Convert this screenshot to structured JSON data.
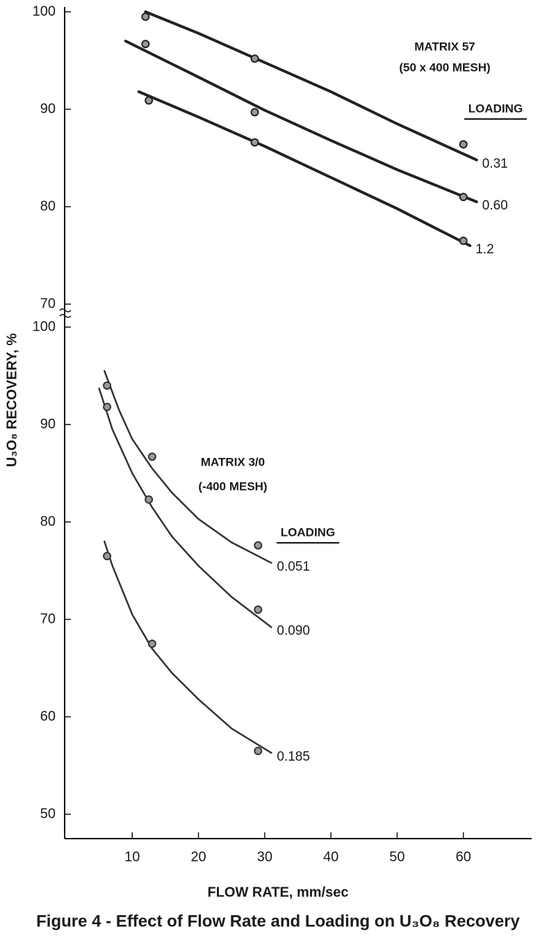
{
  "chart_data": {
    "type": "scatter",
    "title": "Figure 4 - Effect of Flow Rate and Loading on U₃O₈ Recovery",
    "xlabel": "FLOW RATE, mm/sec",
    "ylabel": "U₃O₈ RECOVERY, %",
    "xlim": [
      0,
      70
    ],
    "xticks": [
      10,
      20,
      30,
      40,
      50,
      60
    ],
    "panels": [
      {
        "annotations": [
          "MATRIX 57",
          "(50 x 400 MESH)",
          "LOADING"
        ],
        "ylim": [
          70,
          100
        ],
        "yticks": [
          70,
          80,
          90,
          100
        ],
        "series": [
          {
            "name": "0.31",
            "color": "#222222",
            "x": [
              12,
              28.5,
              60
            ],
            "values": [
              99.5,
              95.2,
              86.4
            ],
            "fit_x": [
              12,
              20,
              30,
              40,
              50,
              62
            ],
            "fit_values": [
              100,
              97.8,
              94.8,
              91.8,
              88.5,
              84.8
            ]
          },
          {
            "name": "0.60",
            "color": "#222222",
            "x": [
              12,
              28.5,
              60
            ],
            "values": [
              96.7,
              89.7,
              81
            ],
            "fit_x": [
              9,
              20,
              30,
              40,
              50,
              62
            ],
            "fit_values": [
              97,
              93.3,
              89.9,
              86.8,
              83.8,
              80.5
            ]
          },
          {
            "name": "1.2",
            "color": "#222222",
            "x": [
              12.5,
              28.5,
              60
            ],
            "values": [
              90.9,
              86.6,
              76.5
            ],
            "fit_x": [
              11,
              20,
              30,
              40,
              50,
              61
            ],
            "fit_values": [
              91.8,
              89.2,
              86.2,
              83,
              79.8,
              76
            ]
          }
        ]
      },
      {
        "annotations": [
          "MATRIX 3/0",
          "(-400 MESH)",
          "LOADING"
        ],
        "ylim": [
          47.5,
          100
        ],
        "yticks": [
          50,
          60,
          70,
          80,
          90,
          100
        ],
        "series": [
          {
            "name": "0.051",
            "color": "#333333",
            "x": [
              6.2,
              13,
              29
            ],
            "values": [
              94,
              86.7,
              77.6
            ],
            "fit_x": [
              5.8,
              8,
              10,
              13,
              16,
              20,
              25,
              31
            ],
            "fit_values": [
              95.5,
              91.5,
              88.5,
              85.5,
              83,
              80.3,
              77.9,
              75.8
            ]
          },
          {
            "name": "0.090",
            "color": "#333333",
            "x": [
              6.2,
              12.5,
              29
            ],
            "values": [
              91.8,
              82.3,
              71
            ],
            "fit_x": [
              5,
              7,
              10,
              13,
              16,
              20,
              25,
              31
            ],
            "fit_values": [
              93.7,
              89.5,
              85,
              81.5,
              78.5,
              75.5,
              72.3,
              69.2
            ]
          },
          {
            "name": "0.185",
            "color": "#333333",
            "x": [
              6.2,
              13,
              29
            ],
            "values": [
              76.5,
              67.5,
              56.5
            ],
            "fit_x": [
              5.8,
              7,
              10,
              13,
              16,
              20,
              25,
              31
            ],
            "fit_values": [
              78,
              75.5,
              70.5,
              67,
              64.5,
              61.8,
              58.8,
              56.3
            ]
          }
        ]
      }
    ]
  }
}
